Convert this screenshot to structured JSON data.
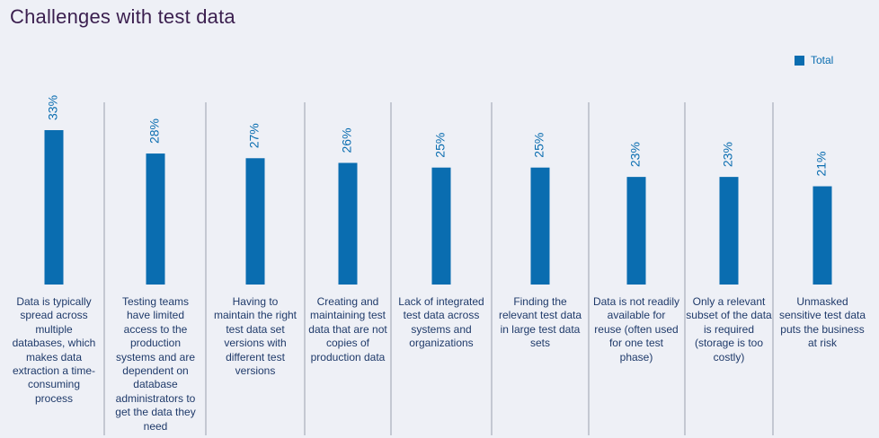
{
  "chart_data": {
    "type": "bar",
    "title": "Challenges with test data",
    "legend": {
      "position": "top-right",
      "entries": [
        "Total"
      ]
    },
    "series": [
      {
        "name": "Total",
        "color": "#0a6db0",
        "values": [
          33,
          28,
          27,
          26,
          25,
          25,
          23,
          23,
          21
        ]
      }
    ],
    "value_labels": [
      "33%",
      "28%",
      "27%",
      "26%",
      "25%",
      "25%",
      "23%",
      "23%",
      "21%"
    ],
    "categories": [
      "Data is typically spread across multiple databases, which makes data extraction a time-consuming process",
      "Testing teams have limited access to the production systems and are dependent on database administrators to get the data they need",
      "Having to maintain the right test data set versions with different test versions",
      "Creating and maintaining test data that are not copies of production data",
      "Lack of integrated test data across systems and organizations",
      "Finding the relevant test data in large test data sets",
      "Data is not readily available for reuse (often used for one test phase)",
      "Only a relevant subset of the data is required (storage is too costly)",
      "Unmasked sensitive test data puts the business at risk"
    ],
    "ylim": [
      0,
      33
    ],
    "grid": false
  }
}
